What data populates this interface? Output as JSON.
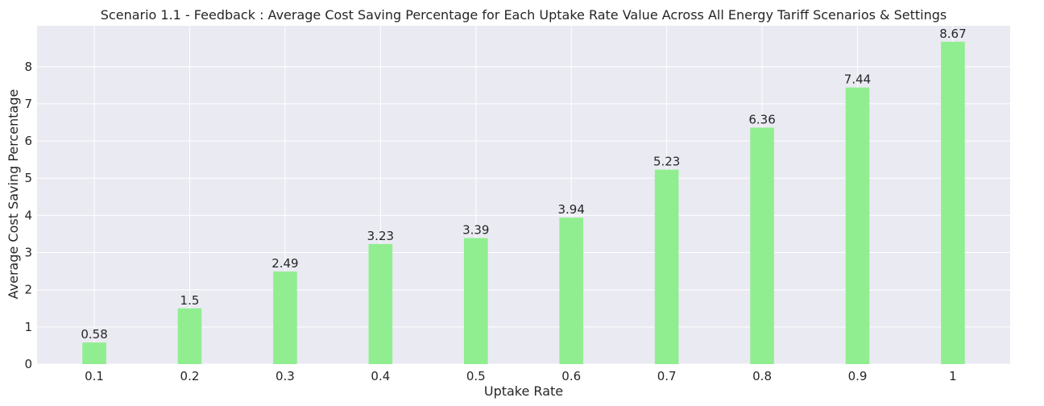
{
  "chart_data": {
    "type": "bar",
    "title": "Scenario 1.1 - Feedback : Average Cost Saving Percentage for Each Uptake Rate Value Across All Energy Tariff Scenarios & Settings",
    "xlabel": "Uptake Rate",
    "ylabel": "Average Cost Saving Percentage",
    "categories": [
      "0.1",
      "0.2",
      "0.3",
      "0.4",
      "0.5",
      "0.6",
      "0.7",
      "0.8",
      "0.9",
      "1"
    ],
    "values": [
      0.58,
      1.5,
      2.49,
      3.23,
      3.39,
      3.94,
      5.23,
      6.36,
      7.44,
      8.67
    ],
    "data_labels": [
      "0.58",
      "1.5",
      "2.49",
      "3.23",
      "3.39",
      "3.94",
      "5.23",
      "6.36",
      "7.44",
      "8.67"
    ],
    "ylim": [
      0,
      9.1
    ],
    "yticks": [
      0,
      1,
      2,
      3,
      4,
      5,
      6,
      7,
      8
    ],
    "grid": true,
    "colors": {
      "bar": "#90ee90",
      "plot_background": "#eaeaf2",
      "grid": "#ffffff",
      "text": "#262626"
    }
  }
}
